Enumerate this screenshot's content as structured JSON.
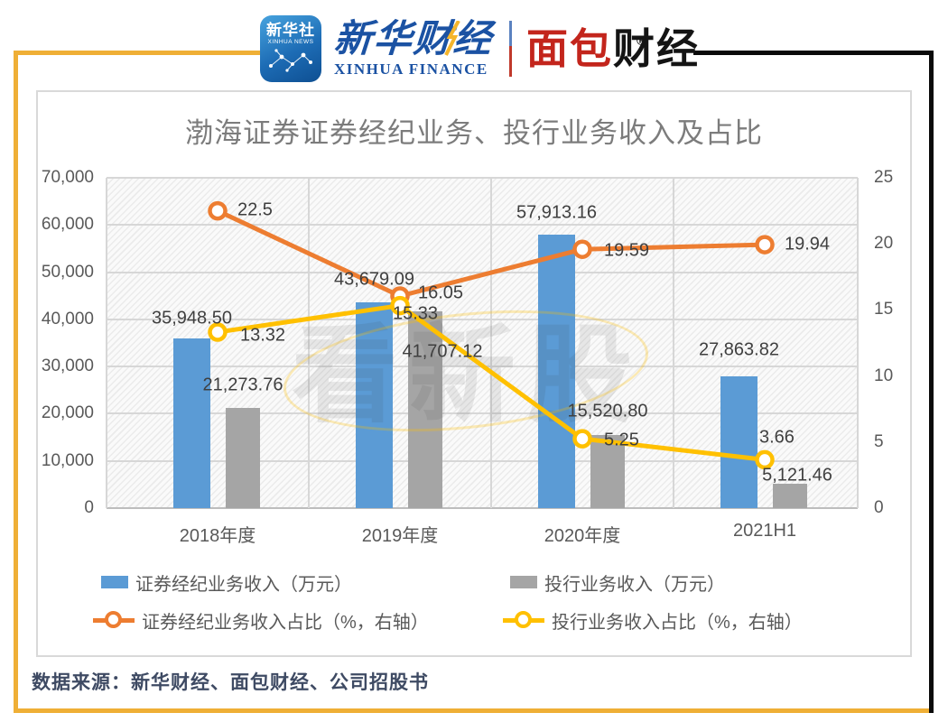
{
  "header": {
    "xinhua_news_icon": {
      "line1": "新华社",
      "line2": "XINHUA NEWS"
    },
    "xinhua_finance": {
      "cn": "新华财经",
      "en": "XINHUA FINANCE"
    },
    "mianbao_logo": {
      "cn_red": "面包",
      "cn_black": "财经",
      "reg": "®"
    }
  },
  "chart_data": {
    "type": "combo",
    "title": "渤海证券证券经纪业务、投行业务收入及占比",
    "categories": [
      "2018年度",
      "2019年度",
      "2020年度",
      "2021H1"
    ],
    "left_axis": {
      "min": 0,
      "max": 70000,
      "step": 10000,
      "ticks": [
        "70,000",
        "60,000",
        "50,000",
        "40,000",
        "30,000",
        "20,000",
        "10,000",
        "0"
      ]
    },
    "right_axis": {
      "min": 0,
      "max": 25,
      "step": 5,
      "ticks": [
        "25",
        "20",
        "15",
        "10",
        "5",
        "0"
      ]
    },
    "grid": true,
    "legend_position": "bottom",
    "watermark": "看新股",
    "series": [
      {
        "name": "证券经纪业务收入（万元）",
        "type": "bar",
        "axis": "left",
        "color": "#5B9BD5",
        "values": [
          35948.5,
          43679.09,
          57913.16,
          27863.82
        ],
        "labels": [
          "35,948.50",
          "43,679.09",
          "57,913.16",
          "27,863.82"
        ]
      },
      {
        "name": "投行业务收入（万元）",
        "type": "bar",
        "axis": "left",
        "color": "#A5A5A5",
        "values": [
          21273.76,
          41707.12,
          15520.8,
          5121.46
        ],
        "labels": [
          "21,273.76",
          "41,707.12",
          "15,520.80",
          "5,121.46"
        ]
      },
      {
        "name": "证券经纪业务收入占比（%，右轴）",
        "type": "line",
        "axis": "right",
        "color": "#ED7D31",
        "values": [
          22.5,
          16.05,
          19.59,
          19.94
        ],
        "labels": [
          "22.5",
          "16.05",
          "19.59",
          "19.94"
        ]
      },
      {
        "name": "投行业务收入占比（%，右轴）",
        "type": "line",
        "axis": "right",
        "color": "#FFC000",
        "values": [
          13.32,
          15.33,
          5.25,
          3.66
        ],
        "labels": [
          "13.32",
          "15.33",
          "5.25",
          "3.66"
        ]
      }
    ]
  },
  "footer": {
    "source": "数据来源：新华财经、面包财经、公司招股书"
  },
  "colors": {
    "frame_yellow": "#EFAF36",
    "frame_black": "#0A0A0A",
    "bar_blue": "#5B9BD5",
    "bar_gray": "#A5A5A5",
    "line_orange": "#ED7D31",
    "line_yellow": "#FFC000",
    "xinhua_blue": "#1B52A3",
    "mianbao_red": "#C3251C",
    "title_gray": "#7C7C7C",
    "axis_gray": "#595959"
  }
}
